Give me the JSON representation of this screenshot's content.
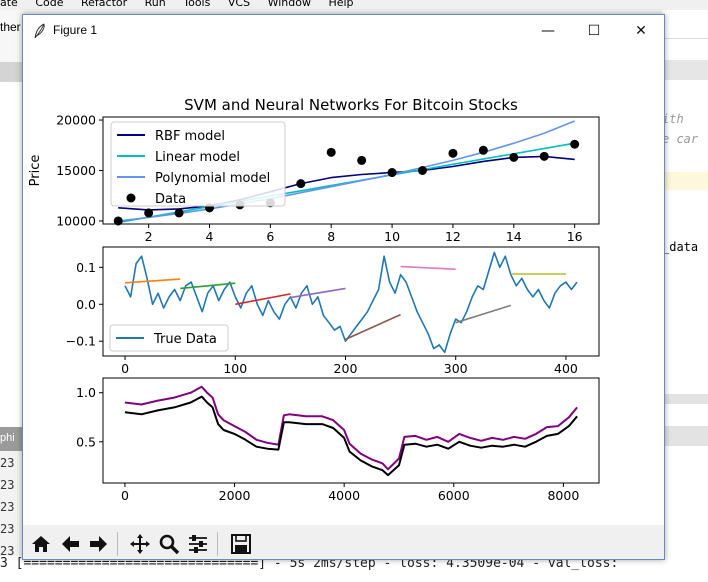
{
  "ide": {
    "menu": [
      "ate",
      "Code",
      "Refactor",
      "Run",
      "Tools",
      "VCS",
      "Window",
      "Help"
    ],
    "left_tab": "ther",
    "left_tab2": "phi",
    "left_lines": [
      "23",
      "23",
      "23",
      "23",
      "23",
      "23"
    ],
    "right_code": [
      "ith",
      "e car",
      "_data"
    ],
    "console_line": "3  [==============================] - 5s 2ms/step - loss: 4.3509e-04 - val_loss:"
  },
  "window": {
    "title": "Figure 1",
    "minimize": "—",
    "maximize": "☐",
    "close": "✕"
  },
  "toolbar": {
    "buttons": [
      "home-icon",
      "back-icon",
      "forward-icon",
      "pan-icon",
      "zoom-icon",
      "configure-icon",
      "save-icon"
    ]
  },
  "chart_data": [
    {
      "type": "scatter",
      "title": "SVM and Neural Networks For Bitcoin Stocks",
      "ylabel": "Price",
      "xlim": [
        0.5,
        16.8
      ],
      "ylim": [
        9700,
        20300
      ],
      "xticks": [
        2,
        4,
        6,
        8,
        10,
        12,
        14,
        16
      ],
      "yticks": [
        10000,
        15000,
        20000
      ],
      "legend_position": "upper-left",
      "series": [
        {
          "name": "RBF model",
          "kind": "line",
          "color": "#000080",
          "x": [
            1,
            2,
            3,
            4,
            5,
            6,
            7,
            8,
            9,
            10,
            11,
            12,
            13,
            14,
            15,
            16
          ],
          "y": [
            11300,
            11100,
            11200,
            11500,
            12100,
            12900,
            13700,
            14300,
            14600,
            14800,
            15000,
            15400,
            15900,
            16300,
            16400,
            16100
          ]
        },
        {
          "name": "Linear model",
          "kind": "line",
          "color": "#00bfbf",
          "x": [
            1,
            16
          ],
          "y": [
            9850,
            17700
          ]
        },
        {
          "name": "Polynomial model",
          "kind": "line",
          "color": "#6495ed",
          "x": [
            1,
            2,
            3,
            4,
            5,
            6,
            7,
            8,
            9,
            10,
            11,
            12,
            13,
            14,
            15,
            16
          ],
          "y": [
            10000,
            10350,
            10750,
            11200,
            11700,
            12200,
            12800,
            13400,
            14000,
            14600,
            15300,
            16000,
            16800,
            17700,
            18700,
            19900
          ]
        },
        {
          "name": "Data",
          "kind": "points",
          "color": "#000000",
          "x": [
            1,
            2,
            3,
            4,
            5,
            6,
            7,
            8,
            9,
            10,
            11,
            12,
            13,
            14,
            15,
            16
          ],
          "y": [
            10000,
            10800,
            10800,
            11300,
            11600,
            11800,
            13700,
            16800,
            16000,
            14800,
            15000,
            16700,
            17000,
            16300,
            16400,
            17600
          ]
        }
      ]
    },
    {
      "type": "line",
      "xlim": [
        -20,
        430
      ],
      "ylim": [
        -0.14,
        0.155
      ],
      "xticks": [
        0,
        100,
        200,
        300,
        400
      ],
      "yticks": [
        0.1,
        0.0,
        -0.1
      ],
      "ytick_labels": [
        "0.1",
        "0.0",
        "−0.1"
      ],
      "legend_position": "lower-left",
      "series": [
        {
          "name": "True Data",
          "color": "#1f77b4",
          "x": [
            0,
            5,
            10,
            15,
            20,
            25,
            30,
            35,
            40,
            45,
            50,
            55,
            60,
            65,
            70,
            75,
            80,
            85,
            90,
            95,
            100,
            105,
            110,
            115,
            120,
            125,
            130,
            135,
            140,
            145,
            150,
            155,
            160,
            165,
            170,
            175,
            180,
            185,
            190,
            195,
            200,
            205,
            210,
            215,
            220,
            225,
            230,
            235,
            240,
            245,
            250,
            255,
            260,
            265,
            270,
            275,
            280,
            285,
            290,
            295,
            300,
            305,
            310,
            315,
            320,
            325,
            330,
            335,
            340,
            345,
            350,
            355,
            360,
            365,
            370,
            375,
            380,
            385,
            390,
            395,
            400,
            405,
            410
          ],
          "y": [
            0.05,
            0.02,
            0.11,
            0.13,
            0.07,
            0.0,
            0.03,
            -0.01,
            0.02,
            0.04,
            0.01,
            0.05,
            0.06,
            0.02,
            -0.02,
            0.03,
            0.05,
            0.01,
            0.04,
            0.06,
            0.02,
            -0.01,
            0.03,
            0.05,
            0.0,
            -0.03,
            0.01,
            -0.02,
            -0.04,
            0.0,
            0.02,
            -0.01,
            0.03,
            0.05,
            0.0,
            0.02,
            -0.03,
            -0.05,
            -0.07,
            -0.06,
            -0.1,
            -0.08,
            -0.06,
            -0.04,
            -0.02,
            0.01,
            0.04,
            0.13,
            0.06,
            0.03,
            0.08,
            0.06,
            0.02,
            -0.02,
            -0.05,
            -0.08,
            -0.12,
            -0.11,
            -0.13,
            -0.08,
            -0.04,
            -0.05,
            -0.02,
            0.02,
            0.05,
            0.04,
            0.09,
            0.14,
            0.1,
            0.13,
            0.08,
            0.05,
            0.07,
            0.04,
            0.02,
            0.04,
            0.01,
            -0.01,
            0.03,
            0.05,
            0.06,
            0.04,
            0.06
          ]
        },
        {
          "name": "",
          "color": "#ff7f0e",
          "x": [
            0,
            50
          ],
          "y": [
            0.058,
            0.068
          ]
        },
        {
          "name": "",
          "color": "#2ca02c",
          "x": [
            50,
            100
          ],
          "y": [
            0.043,
            0.057
          ]
        },
        {
          "name": "",
          "color": "#d62728",
          "x": [
            100,
            150
          ],
          "y": [
            0.0,
            0.028
          ]
        },
        {
          "name": "",
          "color": "#9467bd",
          "x": [
            150,
            200
          ],
          "y": [
            0.018,
            0.043
          ]
        },
        {
          "name": "",
          "color": "#8c564b",
          "x": [
            200,
            250
          ],
          "y": [
            -0.095,
            -0.028
          ]
        },
        {
          "name": "",
          "color": "#e377c2",
          "x": [
            250,
            300
          ],
          "y": [
            0.102,
            0.095
          ]
        },
        {
          "name": "",
          "color": "#7f7f7f",
          "x": [
            300,
            350
          ],
          "y": [
            -0.05,
            -0.003
          ]
        },
        {
          "name": "",
          "color": "#bcbd22",
          "x": [
            350,
            400
          ],
          "y": [
            0.082,
            0.082
          ]
        }
      ]
    },
    {
      "type": "line",
      "xlim": [
        -400,
        8650
      ],
      "ylim": [
        0.08,
        1.15
      ],
      "xticks": [
        0,
        2000,
        4000,
        6000,
        8000
      ],
      "yticks": [
        1.0,
        0.5
      ],
      "ytick_labels": [
        "1.0",
        "0.5"
      ],
      "series": [
        {
          "name": "",
          "color": "#800080",
          "x": [
            0,
            300,
            600,
            900,
            1200,
            1400,
            1500,
            1600,
            1700,
            1800,
            2000,
            2200,
            2400,
            2600,
            2800,
            2900,
            3000,
            3300,
            3600,
            3800,
            4000,
            4100,
            4300,
            4500,
            4700,
            4800,
            5000,
            5100,
            5300,
            5500,
            5700,
            5900,
            6100,
            6300,
            6500,
            6700,
            6900,
            7100,
            7300,
            7500,
            7700,
            7900,
            8100,
            8250
          ],
          "y": [
            0.9,
            0.88,
            0.92,
            0.95,
            1.0,
            1.06,
            1.0,
            0.95,
            0.78,
            0.72,
            0.66,
            0.6,
            0.52,
            0.49,
            0.47,
            0.77,
            0.78,
            0.76,
            0.76,
            0.72,
            0.62,
            0.48,
            0.38,
            0.32,
            0.28,
            0.22,
            0.33,
            0.55,
            0.56,
            0.52,
            0.55,
            0.5,
            0.58,
            0.54,
            0.51,
            0.54,
            0.52,
            0.55,
            0.53,
            0.58,
            0.65,
            0.66,
            0.75,
            0.85
          ]
        },
        {
          "name": "",
          "color": "#000000",
          "x": [
            0,
            300,
            600,
            900,
            1200,
            1400,
            1500,
            1600,
            1700,
            1800,
            2000,
            2200,
            2400,
            2600,
            2800,
            2900,
            3000,
            3300,
            3600,
            3800,
            4000,
            4100,
            4300,
            4500,
            4700,
            4800,
            5000,
            5100,
            5300,
            5500,
            5700,
            5900,
            6100,
            6300,
            6500,
            6700,
            6900,
            7100,
            7300,
            7500,
            7700,
            7900,
            8100,
            8250
          ],
          "y": [
            0.8,
            0.78,
            0.82,
            0.85,
            0.9,
            0.96,
            0.9,
            0.85,
            0.68,
            0.62,
            0.58,
            0.52,
            0.45,
            0.43,
            0.42,
            0.7,
            0.7,
            0.68,
            0.68,
            0.64,
            0.54,
            0.4,
            0.31,
            0.25,
            0.21,
            0.16,
            0.26,
            0.47,
            0.48,
            0.45,
            0.47,
            0.43,
            0.5,
            0.46,
            0.44,
            0.46,
            0.45,
            0.47,
            0.45,
            0.5,
            0.56,
            0.58,
            0.66,
            0.76
          ]
        }
      ]
    }
  ]
}
